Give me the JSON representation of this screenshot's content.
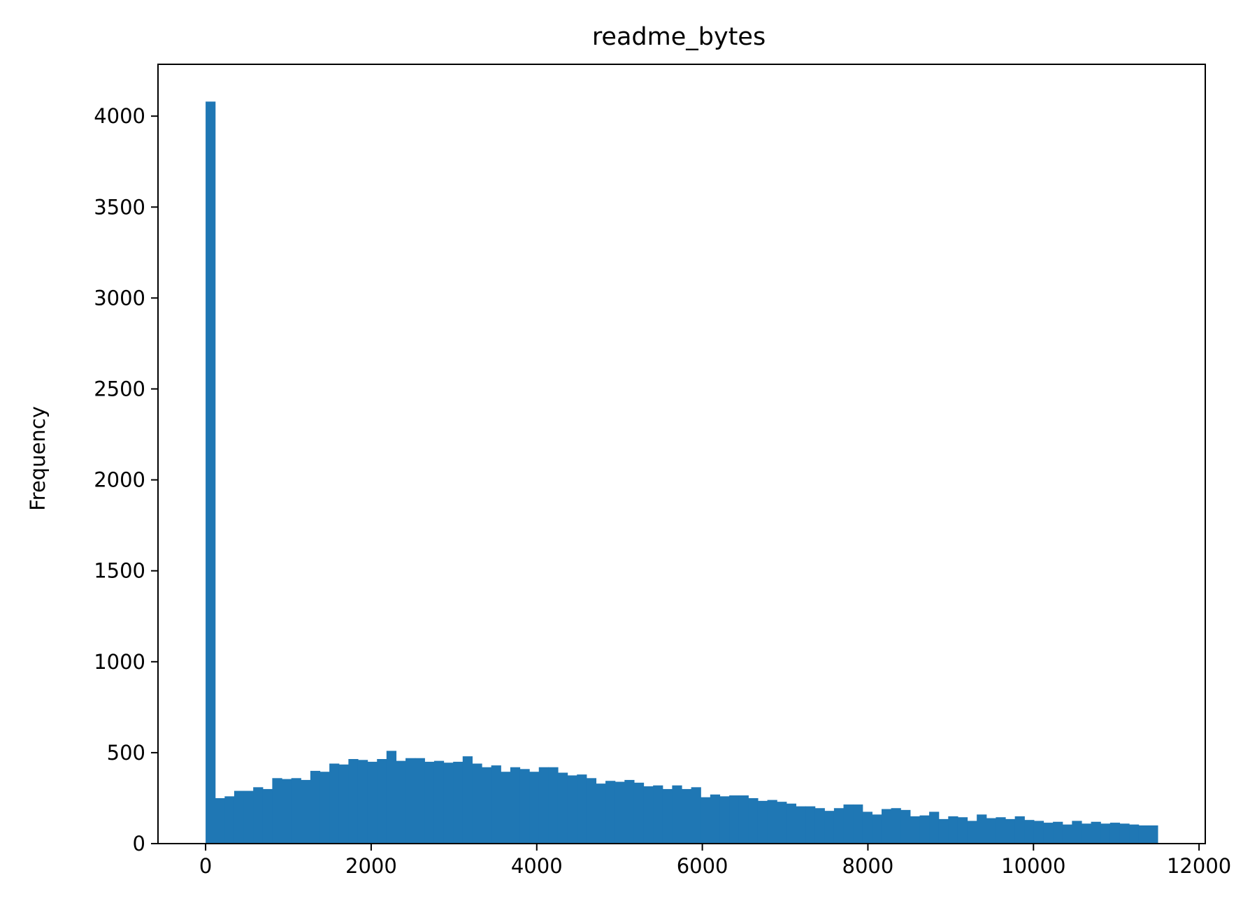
{
  "chart_data": {
    "type": "bar",
    "histogram": true,
    "title": "readme_bytes",
    "xlabel": "",
    "ylabel": "Frequency",
    "xlim": [
      -575,
      12075
    ],
    "ylim": [
      0,
      4285
    ],
    "x_ticks": [
      0,
      2000,
      4000,
      6000,
      8000,
      10000,
      12000
    ],
    "x_tick_labels": [
      "0",
      "2000",
      "4000",
      "6000",
      "8000",
      "10000",
      "12000"
    ],
    "y_ticks": [
      0,
      500,
      1000,
      1500,
      2000,
      2500,
      3000,
      3500,
      4000
    ],
    "y_tick_labels": [
      "0",
      "500",
      "1000",
      "1500",
      "2000",
      "2500",
      "3000",
      "3500",
      "4000"
    ],
    "grid": false,
    "bar_color": "#1f77b4",
    "bin_start": 0,
    "bin_width": 115,
    "values": [
      4080,
      250,
      260,
      290,
      290,
      310,
      300,
      360,
      355,
      360,
      350,
      400,
      395,
      440,
      435,
      465,
      460,
      450,
      465,
      510,
      455,
      470,
      470,
      450,
      455,
      445,
      450,
      480,
      440,
      420,
      430,
      395,
      420,
      410,
      395,
      420,
      420,
      390,
      375,
      380,
      360,
      330,
      345,
      340,
      350,
      335,
      315,
      320,
      300,
      320,
      300,
      310,
      255,
      270,
      260,
      265,
      265,
      250,
      235,
      240,
      230,
      220,
      205,
      205,
      195,
      180,
      195,
      215,
      215,
      175,
      160,
      190,
      195,
      185,
      150,
      155,
      175,
      135,
      150,
      145,
      125,
      160,
      140,
      145,
      135,
      150,
      130,
      125,
      115,
      120,
      105,
      125,
      110,
      120,
      110,
      115,
      110,
      105,
      100,
      100
    ]
  }
}
